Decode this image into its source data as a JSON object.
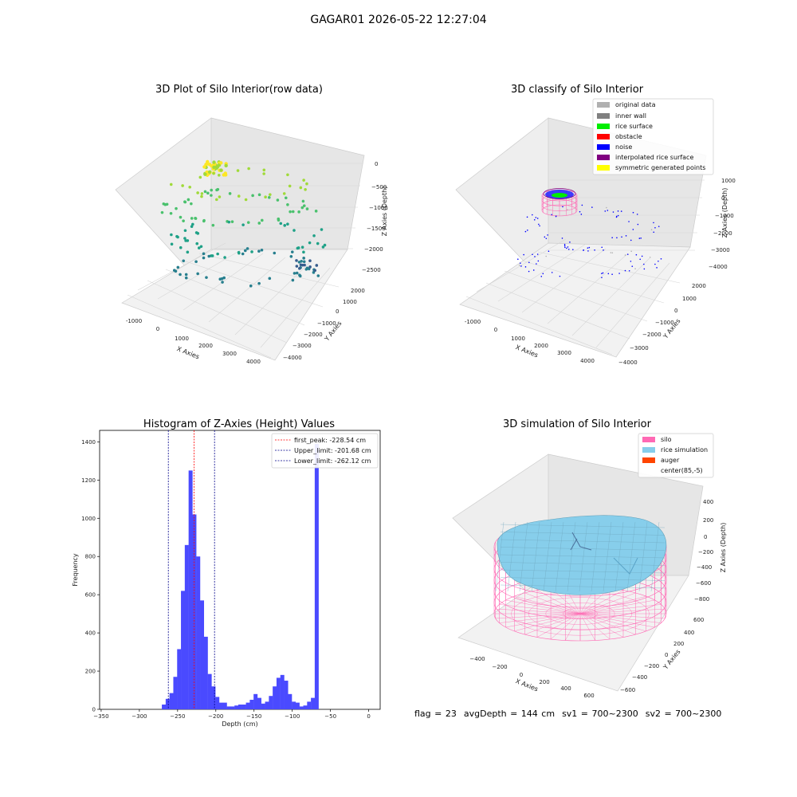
{
  "figure_title": "GAGAR01 2026-05-22 12:27:04",
  "status": {
    "flag": "flag = 23",
    "avg_depth": "avgDepth = 144 cm",
    "sv1": "sv1 = 700~2300",
    "sv2": "sv2 = 700~2300"
  },
  "chart_data": [
    {
      "type": "scatter3d",
      "title": "3D Plot of Silo Interior(row data)",
      "xlabel": "X Axies",
      "ylabel": "Y Axies",
      "zlabel": "Z Axies (Depth)",
      "x_ticks": [
        "-1000",
        "0",
        "1000",
        "2000",
        "3000",
        "4000"
      ],
      "y_ticks": [
        "2000",
        "1000",
        "0",
        "−1000",
        "−2000",
        "−3000",
        "−4000"
      ],
      "z_ticks": [
        "0",
        "−500",
        "−1000",
        "−1500",
        "−2000",
        "−2500"
      ],
      "colormap": [
        "#fde725",
        "#a0da39",
        "#4ac16d",
        "#1fa187",
        "#277f8e",
        "#365c8d",
        "#46327e"
      ]
    },
    {
      "type": "scatter3d",
      "title": "3D classify of Silo Interior",
      "xlabel": "X Axies",
      "ylabel": "Y Axies",
      "zlabel": "Z Axies (Depth)",
      "x_ticks": [
        "-1000",
        "0",
        "1000",
        "2000",
        "3000",
        "4000"
      ],
      "y_ticks": [
        "2000",
        "1000",
        "0",
        "−1000",
        "−2000",
        "−3000",
        "−4000"
      ],
      "z_ticks": [
        "1000",
        "0",
        "−1000",
        "−2000",
        "−3000",
        "−4000"
      ],
      "legend_position": "top-right",
      "legend": [
        {
          "label": "original data",
          "color": "#b0b0b0"
        },
        {
          "label": "inner wall",
          "color": "#808080"
        },
        {
          "label": "rice surface",
          "color": "#00ee00"
        },
        {
          "label": "obstacle",
          "color": "#ff0000"
        },
        {
          "label": "noise",
          "color": "#0000ff"
        },
        {
          "label": "interpolated rice surface",
          "color": "#800080"
        },
        {
          "label": "symmetric generated points",
          "color": "#ffff00"
        }
      ]
    },
    {
      "type": "bar",
      "title": "Histogram of Z-Axies (Height) Values",
      "xlabel": "Depth (cm)",
      "ylabel": "Frequency",
      "xlim": [
        -352,
        15
      ],
      "ylim": [
        0,
        1460
      ],
      "x_ticks": [
        -350,
        -300,
        -250,
        -200,
        -150,
        -100,
        -50,
        0
      ],
      "y_ticks": [
        0,
        200,
        400,
        600,
        800,
        1000,
        1200,
        1400
      ],
      "bar_color": "#4a4aff",
      "bin_width": 5.2,
      "bins": [
        [
          -268,
          25
        ],
        [
          -263,
          55
        ],
        [
          -258,
          85
        ],
        [
          -253,
          170
        ],
        [
          -248,
          315
        ],
        [
          -243,
          620
        ],
        [
          -238,
          860
        ],
        [
          -233,
          1250
        ],
        [
          -228,
          1020
        ],
        [
          -223,
          800
        ],
        [
          -218,
          570
        ],
        [
          -213,
          380
        ],
        [
          -208,
          185
        ],
        [
          -203,
          120
        ],
        [
          -198,
          65
        ],
        [
          -193,
          35
        ],
        [
          -188,
          35
        ],
        [
          -183,
          15
        ],
        [
          -178,
          15
        ],
        [
          -173,
          20
        ],
        [
          -168,
          25
        ],
        [
          -163,
          25
        ],
        [
          -158,
          35
        ],
        [
          -153,
          50
        ],
        [
          -148,
          80
        ],
        [
          -143,
          60
        ],
        [
          -138,
          30
        ],
        [
          -133,
          40
        ],
        [
          -128,
          70
        ],
        [
          -123,
          120
        ],
        [
          -118,
          165
        ],
        [
          -113,
          180
        ],
        [
          -108,
          150
        ],
        [
          -103,
          80
        ],
        [
          -98,
          40
        ],
        [
          -93,
          35
        ],
        [
          -88,
          15
        ],
        [
          -83,
          20
        ],
        [
          -78,
          40
        ],
        [
          -73,
          60
        ],
        [
          -68,
          1390
        ]
      ],
      "series": [
        {
          "name": "first_peak: -228.54 cm",
          "value": -228.54,
          "color": "#ff0000"
        },
        {
          "name": "Upper_limit: -201.68 cm",
          "value": -201.68,
          "color": "#00008b"
        },
        {
          "name": "Lower_limit: -262.12 cm",
          "value": -262.12,
          "color": "#00008b"
        }
      ],
      "legend_position": "top-right"
    },
    {
      "type": "surface3d",
      "title": "3D simulation of Silo Interior",
      "xlabel": "X Axies",
      "ylabel": "Y Axies",
      "zlabel": "Z Axies (Depth)",
      "x_ticks": [
        "−400",
        "−200",
        "0",
        "200",
        "400",
        "600"
      ],
      "y_ticks": [
        "600",
        "400",
        "200",
        "0",
        "−200",
        "−400",
        "−600"
      ],
      "z_ticks": [
        "400",
        "200",
        "0",
        "−200",
        "−400",
        "−600",
        "−800"
      ],
      "legend_position": "top-right",
      "legend": [
        {
          "label": "silo",
          "color": "#ff69b4"
        },
        {
          "label": "rice simulation",
          "color": "#87ceeb"
        },
        {
          "label": "auger",
          "color": "#ff4500"
        },
        {
          "label": "center(85,-5)",
          "color": ""
        }
      ]
    }
  ]
}
